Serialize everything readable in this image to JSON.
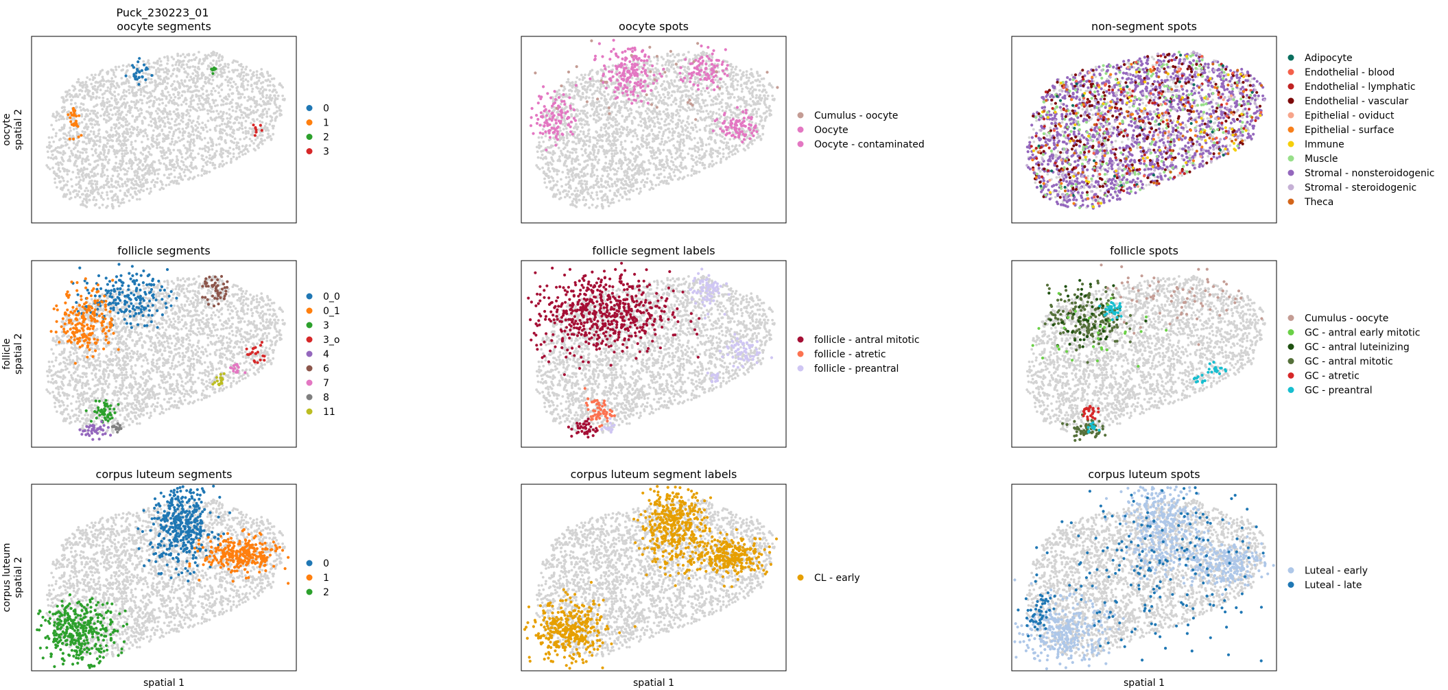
{
  "figure": {
    "suptitle_line1": "Puck_230223_01"
  },
  "colors": {
    "background_spot": "#d3d3d3",
    "frame": "#000000"
  },
  "chart_data": [
    {
      "type": "scatter",
      "title": "oocyte segments",
      "ylabel_lines": [
        "oocyte",
        "spatial 2"
      ],
      "xlabel": "",
      "legend_position": "right",
      "axes_ticks": false,
      "legend": [
        {
          "label": "0",
          "color": "#1f77b4"
        },
        {
          "label": "1",
          "color": "#ff7f0e"
        },
        {
          "label": "2",
          "color": "#2ca02c"
        },
        {
          "label": "3",
          "color": "#d62728"
        }
      ],
      "highlight": [
        {
          "category": "0",
          "color": "#1f77b4",
          "center": [
            0.41,
            0.81
          ],
          "spread": [
            0.02,
            0.03
          ],
          "count": 28
        },
        {
          "category": "1",
          "color": "#ff7f0e",
          "center": [
            0.16,
            0.56
          ],
          "spread": [
            0.012,
            0.04
          ],
          "count": 30
        },
        {
          "category": "2",
          "color": "#2ca02c",
          "center": [
            0.69,
            0.82
          ],
          "spread": [
            0.01,
            0.01
          ],
          "count": 10
        },
        {
          "category": "3",
          "color": "#d62728",
          "center": [
            0.85,
            0.5
          ],
          "spread": [
            0.015,
            0.02
          ],
          "count": 8
        }
      ]
    },
    {
      "type": "scatter",
      "title": "oocyte spots",
      "ylabel_lines": [],
      "xlabel": "",
      "legend_position": "right",
      "axes_ticks": false,
      "legend": [
        {
          "label": "Cumulus - oocyte",
          "color": "#c49c94"
        },
        {
          "label": "Oocyte",
          "color": "#e377c2"
        },
        {
          "label": "Oocyte - contaminated",
          "color": "#e377c2"
        }
      ],
      "highlight": [
        {
          "category": "Oocyte",
          "color": "#e377c2",
          "center": [
            0.4,
            0.8
          ],
          "spread": [
            0.05,
            0.07
          ],
          "count": 180
        },
        {
          "category": "Oocyte",
          "color": "#e377c2",
          "center": [
            0.69,
            0.82
          ],
          "spread": [
            0.04,
            0.05
          ],
          "count": 90
        },
        {
          "category": "Oocyte",
          "color": "#e377c2",
          "center": [
            0.13,
            0.57
          ],
          "spread": [
            0.04,
            0.07
          ],
          "count": 110
        },
        {
          "category": "Oocyte",
          "color": "#e377c2",
          "center": [
            0.82,
            0.52
          ],
          "spread": [
            0.035,
            0.04
          ],
          "count": 80
        },
        {
          "category": "Cumulus - oocyte",
          "color": "#c49c94",
          "center": [
            0.55,
            0.75
          ],
          "spread": [
            0.3,
            0.12
          ],
          "count": 40
        }
      ]
    },
    {
      "type": "scatter",
      "title": "non-segment spots",
      "ylabel_lines": [],
      "xlabel": "",
      "legend_position": "right",
      "axes_ticks": false,
      "legend": [
        {
          "label": "Adipocyte",
          "color": "#0a6e5e"
        },
        {
          "label": "Endothelial - blood",
          "color": "#f4604a"
        },
        {
          "label": "Endothelial - lymphatic",
          "color": "#c02323"
        },
        {
          "label": "Endothelial - vascular",
          "color": "#7c0a0a"
        },
        {
          "label": "Epithelial - oviduct",
          "color": "#f7a58b"
        },
        {
          "label": "Epithelial - surface",
          "color": "#f77f1b"
        },
        {
          "label": "Immune",
          "color": "#f5cf0b"
        },
        {
          "label": "Muscle",
          "color": "#98df8a"
        },
        {
          "label": "Stromal - nonsteroidogenic",
          "color": "#9467bd"
        },
        {
          "label": "Stromal - steroidogenic",
          "color": "#c5b0d5"
        },
        {
          "label": "Theca",
          "color": "#d3651a"
        }
      ],
      "scatter_mix": [
        {
          "category": "Stromal - nonsteroidogenic",
          "color": "#9467bd",
          "count": 1400
        },
        {
          "category": "Endothelial - vascular",
          "color": "#7c0a0a",
          "count": 260
        },
        {
          "category": "Muscle",
          "color": "#98df8a",
          "count": 220
        },
        {
          "category": "Endothelial - lymphatic",
          "color": "#c02323",
          "count": 90
        },
        {
          "category": "Stromal - steroidogenic",
          "color": "#c5b0d5",
          "count": 140
        },
        {
          "category": "Immune",
          "color": "#f5cf0b",
          "count": 60
        },
        {
          "category": "Theca",
          "color": "#d3651a",
          "count": 60
        },
        {
          "category": "Epithelial - surface",
          "color": "#f77f1b",
          "count": 40
        },
        {
          "category": "Endothelial - blood",
          "color": "#f4604a",
          "count": 40
        },
        {
          "category": "Adipocyte",
          "color": "#0a6e5e",
          "count": 30
        },
        {
          "category": "Epithelial - oviduct",
          "color": "#f7a58b",
          "count": 20
        }
      ]
    },
    {
      "type": "scatter",
      "title": "follicle segments",
      "ylabel_lines": [
        "follicle",
        "spatial 2"
      ],
      "xlabel": "",
      "legend_position": "right",
      "axes_ticks": false,
      "legend": [
        {
          "label": "0_0",
          "color": "#1f77b4"
        },
        {
          "label": "0_1",
          "color": "#ff7f0e"
        },
        {
          "label": "3",
          "color": "#2ca02c"
        },
        {
          "label": "3_o",
          "color": "#d62728"
        },
        {
          "label": "4",
          "color": "#9467bd"
        },
        {
          "label": "6",
          "color": "#8c564b"
        },
        {
          "label": "7",
          "color": "#e377c2"
        },
        {
          "label": "8",
          "color": "#7f7f7f"
        },
        {
          "label": "11",
          "color": "#bcbd22"
        }
      ],
      "highlight": [
        {
          "category": "0_0",
          "color": "#1f77b4",
          "center": [
            0.35,
            0.8
          ],
          "spread": [
            0.08,
            0.07
          ],
          "count": 200
        },
        {
          "category": "0_1",
          "color": "#ff7f0e",
          "center": [
            0.21,
            0.68
          ],
          "spread": [
            0.05,
            0.09
          ],
          "count": 210
        },
        {
          "category": "3",
          "color": "#2ca02c",
          "center": [
            0.28,
            0.19
          ],
          "spread": [
            0.025,
            0.03
          ],
          "count": 50
        },
        {
          "category": "3_o",
          "color": "#d62728",
          "center": [
            0.84,
            0.5
          ],
          "spread": [
            0.025,
            0.03
          ],
          "count": 20
        },
        {
          "category": "4",
          "color": "#9467bd",
          "center": [
            0.24,
            0.09
          ],
          "spread": [
            0.03,
            0.02
          ],
          "count": 40
        },
        {
          "category": "6",
          "color": "#8c564b",
          "center": [
            0.7,
            0.84
          ],
          "spread": [
            0.025,
            0.04
          ],
          "count": 45
        },
        {
          "category": "7",
          "color": "#e377c2",
          "center": [
            0.77,
            0.42
          ],
          "spread": [
            0.012,
            0.015
          ],
          "count": 15
        },
        {
          "category": "8",
          "color": "#7f7f7f",
          "center": [
            0.32,
            0.1
          ],
          "spread": [
            0.012,
            0.015
          ],
          "count": 12
        },
        {
          "category": "11",
          "color": "#bcbd22",
          "center": [
            0.71,
            0.35
          ],
          "spread": [
            0.012,
            0.02
          ],
          "count": 15
        }
      ]
    },
    {
      "type": "scatter",
      "title": "follicle segment labels",
      "ylabel_lines": [],
      "xlabel": "",
      "legend_position": "right",
      "axes_ticks": false,
      "legend": [
        {
          "label": "follicle - antral mitotic",
          "color": "#a50f35"
        },
        {
          "label": "follicle - atretic",
          "color": "#fc7250"
        },
        {
          "label": "follicle - preantral",
          "color": "#cfc6f3"
        }
      ],
      "highlight": [
        {
          "category": "follicle - antral mitotic",
          "color": "#a50f35",
          "center": [
            0.3,
            0.72
          ],
          "spread": [
            0.13,
            0.11
          ],
          "count": 600
        },
        {
          "category": "follicle - antral mitotic",
          "color": "#a50f35",
          "center": [
            0.24,
            0.1
          ],
          "spread": [
            0.025,
            0.025
          ],
          "count": 40
        },
        {
          "category": "follicle - atretic",
          "color": "#fc7250",
          "center": [
            0.29,
            0.19
          ],
          "spread": [
            0.025,
            0.035
          ],
          "count": 55
        },
        {
          "category": "follicle - preantral",
          "color": "#cfc6f3",
          "center": [
            0.7,
            0.84
          ],
          "spread": [
            0.03,
            0.05
          ],
          "count": 70
        },
        {
          "category": "follicle - preantral",
          "color": "#cfc6f3",
          "center": [
            0.83,
            0.52
          ],
          "spread": [
            0.035,
            0.04
          ],
          "count": 60
        },
        {
          "category": "follicle - preantral",
          "color": "#cfc6f3",
          "center": [
            0.73,
            0.37
          ],
          "spread": [
            0.015,
            0.02
          ],
          "count": 15
        },
        {
          "category": "follicle - preantral",
          "color": "#cfc6f3",
          "center": [
            0.33,
            0.1
          ],
          "spread": [
            0.015,
            0.015
          ],
          "count": 15
        }
      ]
    },
    {
      "type": "scatter",
      "title": "follicle spots",
      "ylabel_lines": [],
      "xlabel": "",
      "legend_position": "right",
      "axes_ticks": false,
      "legend": [
        {
          "label": "Cumulus - oocyte",
          "color": "#c49c94"
        },
        {
          "label": "GC - antral early mitotic",
          "color": "#6ad047"
        },
        {
          "label": "GC - antral luteinizing",
          "color": "#1e5010"
        },
        {
          "label": "GC - antral mitotic",
          "color": "#55703a"
        },
        {
          "label": "GC - atretic",
          "color": "#d62728"
        },
        {
          "label": "GC - preantral",
          "color": "#17becf"
        }
      ],
      "highlight": [
        {
          "category": "GC - antral mitotic",
          "color": "#55703a",
          "center": [
            0.28,
            0.7
          ],
          "spread": [
            0.07,
            0.08
          ],
          "count": 180
        },
        {
          "category": "GC - antral luteinizing",
          "color": "#1e5010",
          "center": [
            0.3,
            0.7
          ],
          "spread": [
            0.08,
            0.09
          ],
          "count": 50
        },
        {
          "category": "GC - antral mitotic",
          "color": "#55703a",
          "center": [
            0.28,
            0.1
          ],
          "spread": [
            0.03,
            0.03
          ],
          "count": 60
        },
        {
          "category": "GC - atretic",
          "color": "#d62728",
          "center": [
            0.29,
            0.19
          ],
          "spread": [
            0.015,
            0.02
          ],
          "count": 25
        },
        {
          "category": "GC - preantral",
          "color": "#17becf",
          "center": [
            0.38,
            0.74
          ],
          "spread": [
            0.02,
            0.03
          ],
          "count": 30
        },
        {
          "category": "GC - preantral",
          "color": "#17becf",
          "center": [
            0.77,
            0.42
          ],
          "spread": [
            0.015,
            0.02
          ],
          "count": 18
        },
        {
          "category": "GC - preantral",
          "color": "#17becf",
          "center": [
            0.71,
            0.36
          ],
          "spread": [
            0.012,
            0.015
          ],
          "count": 10
        },
        {
          "category": "GC - preantral",
          "color": "#17becf",
          "center": [
            0.31,
            0.1
          ],
          "spread": [
            0.015,
            0.015
          ],
          "count": 12
        },
        {
          "category": "Cumulus - oocyte",
          "color": "#c49c94",
          "center": [
            0.62,
            0.8
          ],
          "spread": [
            0.14,
            0.08
          ],
          "count": 70
        },
        {
          "category": "GC - antral early mitotic",
          "color": "#6ad047",
          "center": [
            0.3,
            0.6
          ],
          "spread": [
            0.12,
            0.12
          ],
          "count": 30
        }
      ]
    },
    {
      "type": "scatter",
      "title": "corpus luteum segments",
      "ylabel_lines": [
        "corpus luteum",
        "spatial 2"
      ],
      "xlabel": "spatial 1",
      "legend_position": "right",
      "axes_ticks": false,
      "legend": [
        {
          "label": "0",
          "color": "#1f77b4"
        },
        {
          "label": "1",
          "color": "#ff7f0e"
        },
        {
          "label": "2",
          "color": "#2ca02c"
        }
      ],
      "highlight": [
        {
          "category": "0",
          "color": "#1f77b4",
          "center": [
            0.57,
            0.78
          ],
          "spread": [
            0.06,
            0.11
          ],
          "count": 420
        },
        {
          "category": "1",
          "color": "#ff7f0e",
          "center": [
            0.79,
            0.62
          ],
          "spread": [
            0.07,
            0.05
          ],
          "count": 280
        },
        {
          "category": "2",
          "color": "#2ca02c",
          "center": [
            0.18,
            0.21
          ],
          "spread": [
            0.07,
            0.08
          ],
          "count": 360
        }
      ]
    },
    {
      "type": "scatter",
      "title": "corpus luteum segment labels",
      "ylabel_lines": [],
      "xlabel": "spatial 1",
      "legend_position": "right",
      "axes_ticks": false,
      "legend": [
        {
          "label": "CL - early",
          "color": "#e69f00"
        }
      ],
      "highlight": [
        {
          "category": "CL - early",
          "color": "#e69f00",
          "center": [
            0.57,
            0.78
          ],
          "spread": [
            0.06,
            0.11
          ],
          "count": 420
        },
        {
          "category": "CL - early",
          "color": "#e69f00",
          "center": [
            0.79,
            0.62
          ],
          "spread": [
            0.07,
            0.05
          ],
          "count": 280
        },
        {
          "category": "CL - early",
          "color": "#e69f00",
          "center": [
            0.18,
            0.21
          ],
          "spread": [
            0.07,
            0.08
          ],
          "count": 360
        }
      ]
    },
    {
      "type": "scatter",
      "title": "corpus luteum spots",
      "ylabel_lines": [],
      "xlabel": "spatial 1",
      "legend_position": "right",
      "axes_ticks": false,
      "legend": [
        {
          "label": "Luteal - early",
          "color": "#aec7e8"
        },
        {
          "label": "Luteal - late",
          "color": "#1f77b4"
        }
      ],
      "highlight": [
        {
          "category": "Luteal - early",
          "color": "#aec7e8",
          "center": [
            0.57,
            0.78
          ],
          "spread": [
            0.07,
            0.12
          ],
          "count": 380
        },
        {
          "category": "Luteal - early",
          "color": "#aec7e8",
          "center": [
            0.79,
            0.58
          ],
          "spread": [
            0.08,
            0.06
          ],
          "count": 260
        },
        {
          "category": "Luteal - early",
          "color": "#aec7e8",
          "center": [
            0.2,
            0.2
          ],
          "spread": [
            0.08,
            0.09
          ],
          "count": 320
        },
        {
          "category": "Luteal - late",
          "color": "#1f77b4",
          "center": [
            0.1,
            0.3
          ],
          "spread": [
            0.025,
            0.07
          ],
          "count": 50
        },
        {
          "category": "Luteal - late",
          "color": "#1f77b4",
          "center": [
            0.55,
            0.55
          ],
          "spread": [
            0.25,
            0.22
          ],
          "count": 220
        }
      ]
    }
  ]
}
